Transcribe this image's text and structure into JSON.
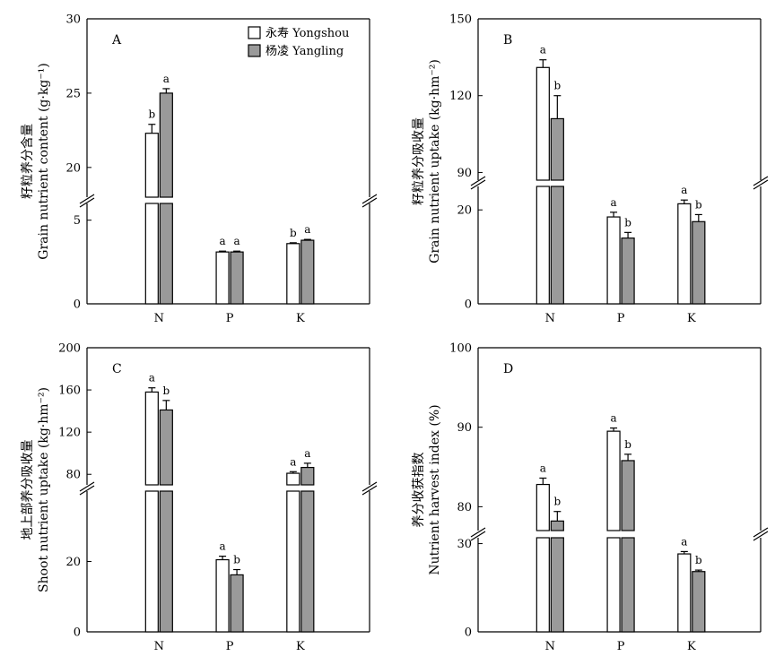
{
  "legend": {
    "items": [
      {
        "label": "永寿 Yongshou",
        "color": "#ffffff"
      },
      {
        "label": "杨凌 Yangling",
        "color": "#9a9a9a"
      }
    ]
  },
  "chart_data": [
    {
      "type": "bar",
      "panel": "A",
      "categories": [
        "N",
        "P",
        "K"
      ],
      "ylabel_cn": "籽粒养分含量",
      "ylabel_en": "Grain nutrient content (g·kg⁻¹)",
      "axis_break": true,
      "lower_range": [
        0,
        6
      ],
      "upper_range": [
        18,
        30
      ],
      "lower_ticks": [
        0,
        5
      ],
      "upper_ticks": [
        20,
        25,
        30
      ],
      "series": [
        {
          "name": "永寿 Yongshou",
          "values": [
            22.3,
            3.1,
            3.6
          ],
          "errors": [
            0.6,
            0.05,
            0.05
          ],
          "sig": [
            "b",
            "a",
            "b"
          ]
        },
        {
          "name": "杨凌 Yangling",
          "values": [
            25.0,
            3.1,
            3.8
          ],
          "errors": [
            0.3,
            0.05,
            0.05
          ],
          "sig": [
            "a",
            "a",
            "a"
          ]
        }
      ]
    },
    {
      "type": "bar",
      "panel": "B",
      "categories": [
        "N",
        "P",
        "K"
      ],
      "ylabel_cn": "籽粒养分吸收量",
      "ylabel_en": "Grain nutrient uptake (kg·hm⁻²)",
      "axis_break": true,
      "lower_range": [
        0,
        25
      ],
      "upper_range": [
        87,
        150
      ],
      "lower_ticks": [
        0,
        20
      ],
      "upper_ticks": [
        90,
        120,
        150
      ],
      "series": [
        {
          "name": "永寿 Yongshou",
          "values": [
            131,
            18.5,
            21.3
          ],
          "errors": [
            3,
            1.0,
            0.8
          ],
          "sig": [
            "a",
            "a",
            "a"
          ]
        },
        {
          "name": "杨凌 Yangling",
          "values": [
            111,
            14.0,
            17.5
          ],
          "errors": [
            9,
            1.2,
            1.5
          ],
          "sig": [
            "b",
            "b",
            "b"
          ]
        }
      ]
    },
    {
      "type": "bar",
      "panel": "C",
      "categories": [
        "N",
        "P",
        "K"
      ],
      "ylabel_cn": "地上部养分吸收量",
      "ylabel_en": "Shoot nutrient uptake (kg·hm⁻²)",
      "axis_break": true,
      "lower_range": [
        0,
        40
      ],
      "upper_range": [
        70,
        200
      ],
      "lower_ticks": [
        0,
        20
      ],
      "upper_ticks": [
        80,
        120,
        160,
        200
      ],
      "series": [
        {
          "name": "永寿 Yongshou",
          "values": [
            158,
            20.5,
            81.0
          ],
          "errors": [
            4,
            1.0,
            1.5
          ],
          "sig": [
            "a",
            "a",
            "a"
          ]
        },
        {
          "name": "杨凌 Yangling",
          "values": [
            141,
            16.2,
            86.5
          ],
          "errors": [
            9,
            1.5,
            4
          ],
          "sig": [
            "b",
            "b",
            "a"
          ]
        }
      ]
    },
    {
      "type": "bar",
      "panel": "D",
      "categories": [
        "N",
        "P",
        "K"
      ],
      "ylabel_cn": "养分收获指数",
      "ylabel_en": "Nutrient harvest index (%)",
      "axis_break": true,
      "lower_range": [
        0,
        32
      ],
      "upper_range": [
        77,
        100
      ],
      "lower_ticks": [
        0,
        30
      ],
      "upper_ticks": [
        80,
        90,
        100
      ],
      "series": [
        {
          "name": "永寿 Yongshou",
          "values": [
            82.8,
            89.5,
            26.5
          ],
          "errors": [
            0.8,
            0.4,
            0.8
          ],
          "sig": [
            "a",
            "a",
            "a"
          ]
        },
        {
          "name": "杨凌 Yangling",
          "values": [
            78.2,
            85.8,
            20.5
          ],
          "errors": [
            1.2,
            0.8,
            0.5
          ],
          "sig": [
            "b",
            "b",
            "b"
          ]
        }
      ]
    }
  ]
}
